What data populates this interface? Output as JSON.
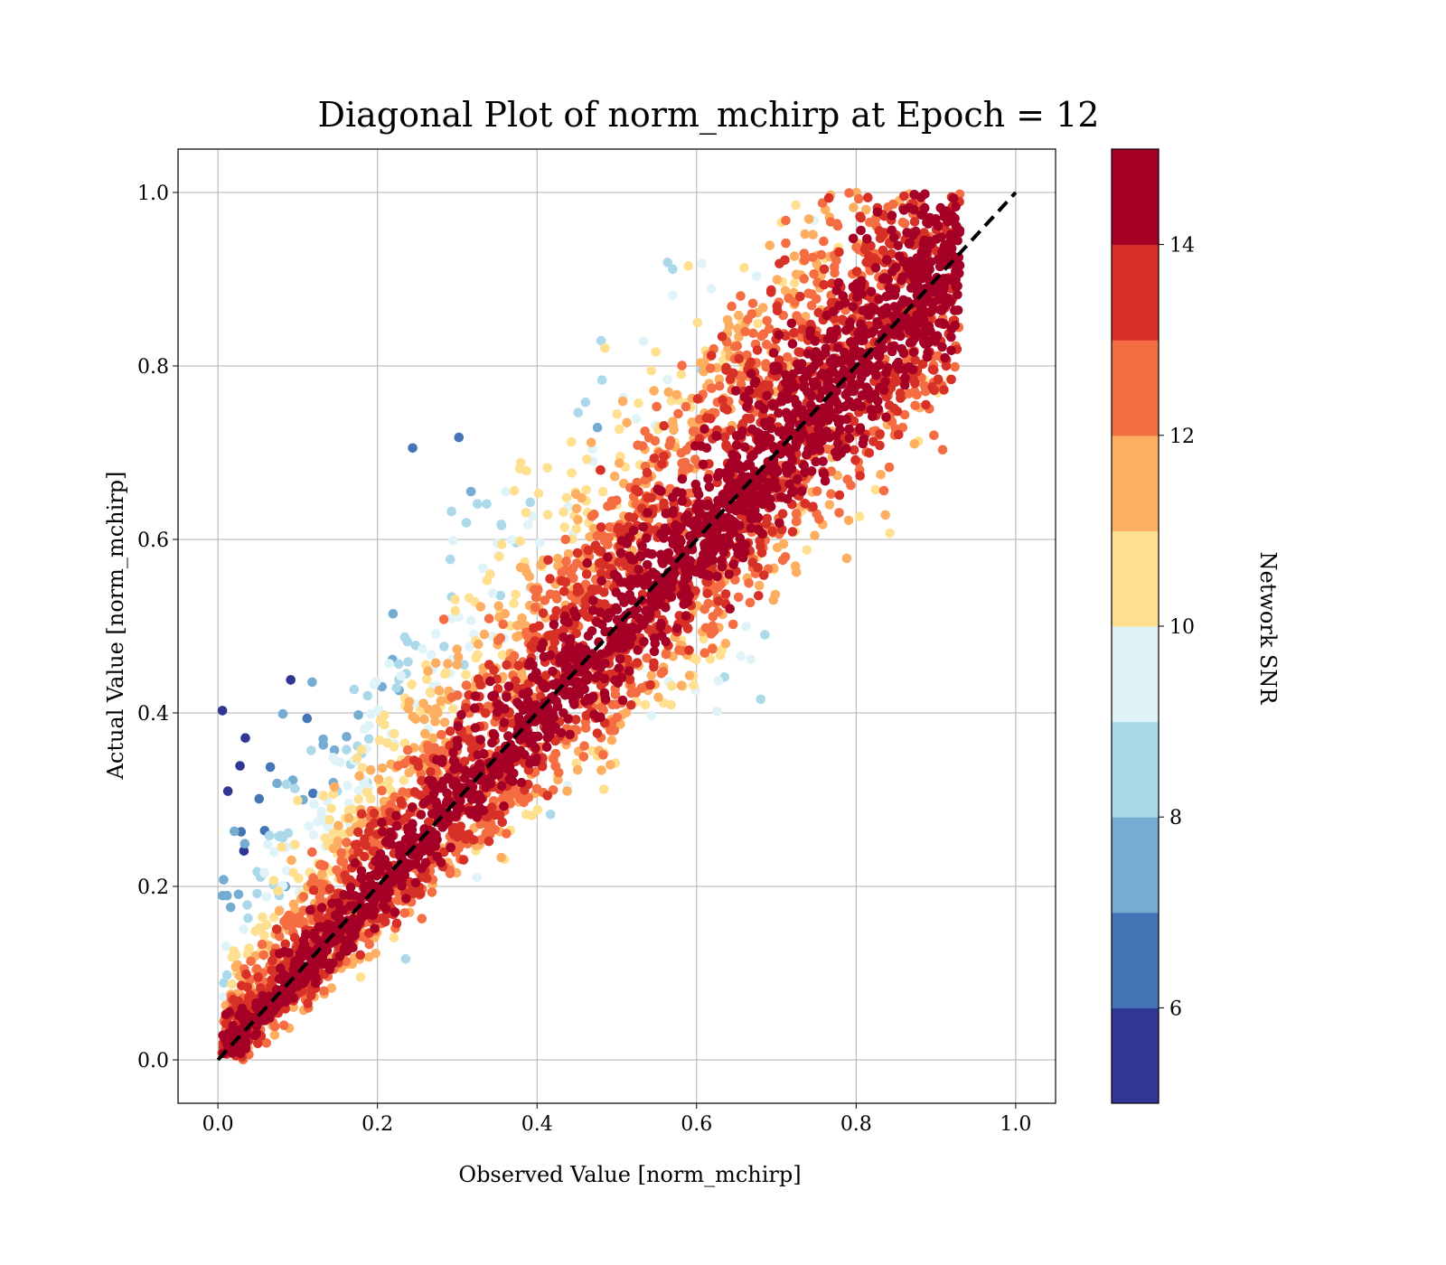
{
  "chart_data": {
    "type": "scatter",
    "title": "Diagonal Plot of norm_mchirp at Epoch = 12",
    "xlabel": "Observed Value [norm_mchirp]",
    "ylabel": "Actual Value [norm_mchirp]",
    "xlim": [
      -0.05,
      1.05
    ],
    "ylim": [
      -0.05,
      1.05
    ],
    "x_ticks": [
      "0.0",
      "0.2",
      "0.4",
      "0.6",
      "0.8",
      "1.0"
    ],
    "y_ticks": [
      "0.0",
      "0.2",
      "0.4",
      "0.6",
      "0.8",
      "1.0"
    ],
    "x_tick_values": [
      0.0,
      0.2,
      0.4,
      0.6,
      0.8,
      1.0
    ],
    "y_tick_values": [
      0.0,
      0.2,
      0.4,
      0.6,
      0.8,
      1.0
    ],
    "grid": true,
    "reference_line": {
      "style": "dashed",
      "color": "#000000",
      "from": [
        0,
        0
      ],
      "to": [
        1,
        1
      ]
    },
    "colorbar": {
      "label": "Network SNR",
      "range": [
        5,
        15
      ],
      "bins": 10,
      "ticks": [
        "6",
        "8",
        "10",
        "12",
        "14"
      ],
      "tick_values": [
        6,
        8,
        10,
        12,
        14
      ],
      "colors": [
        "#313695",
        "#4575b4",
        "#74add1",
        "#abd9e9",
        "#e0f3f8",
        "#fee090",
        "#fdae61",
        "#f46d43",
        "#d73027",
        "#a50026"
      ]
    },
    "points_description_note_free": true,
    "point_clusters": [
      {
        "x_range": [
          0.0,
          0.92
        ],
        "y_range": [
          0.0,
          1.0
        ],
        "snr": 15,
        "pattern": "dense band along diagonal"
      },
      {
        "x_range": [
          0.0,
          0.5
        ],
        "y_range": [
          0.05,
          1.0
        ],
        "snr": 7,
        "pattern": "scattered above diagonal"
      },
      {
        "x_range": [
          0.3,
          0.9
        ],
        "y_range": [
          0.0,
          0.6
        ],
        "snr": 9,
        "pattern": "sparse below diagonal"
      }
    ]
  }
}
